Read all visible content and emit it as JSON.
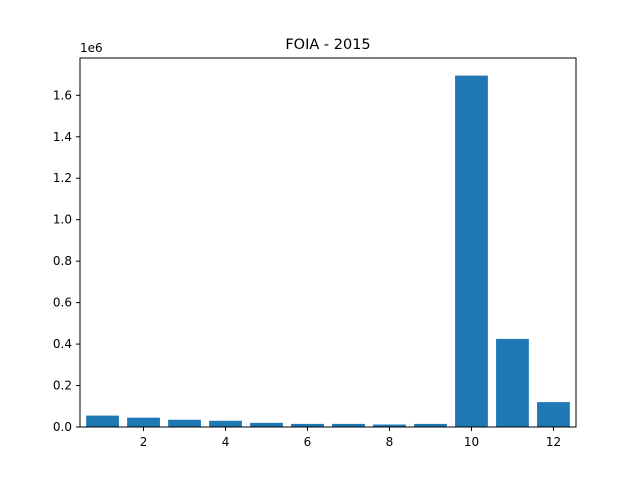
{
  "chart_data": {
    "type": "bar",
    "title": "FOIA - 2015",
    "xlabel": "",
    "ylabel": "",
    "y_scale_label": "1e6",
    "x": [
      1,
      2,
      3,
      4,
      5,
      6,
      7,
      8,
      9,
      10,
      11,
      12
    ],
    "values": [
      55000,
      45000,
      35000,
      30000,
      20000,
      15000,
      15000,
      12000,
      15000,
      1695000,
      425000,
      120000
    ],
    "xlim": [
      0.45,
      12.55
    ],
    "ylim": [
      0,
      1780000
    ],
    "x_ticks": [
      2,
      4,
      6,
      8,
      10,
      12
    ],
    "x_tick_labels": [
      "2",
      "4",
      "6",
      "8",
      "10",
      "12"
    ],
    "y_ticks": [
      0,
      200000,
      400000,
      600000,
      800000,
      1000000,
      1200000,
      1400000,
      1600000
    ],
    "y_tick_labels": [
      "0.0",
      "0.2",
      "0.4",
      "0.6",
      "0.8",
      "1.0",
      "1.2",
      "1.4",
      "1.6"
    ],
    "bar_color": "#1f77b4",
    "grid": false,
    "legend": "none"
  }
}
